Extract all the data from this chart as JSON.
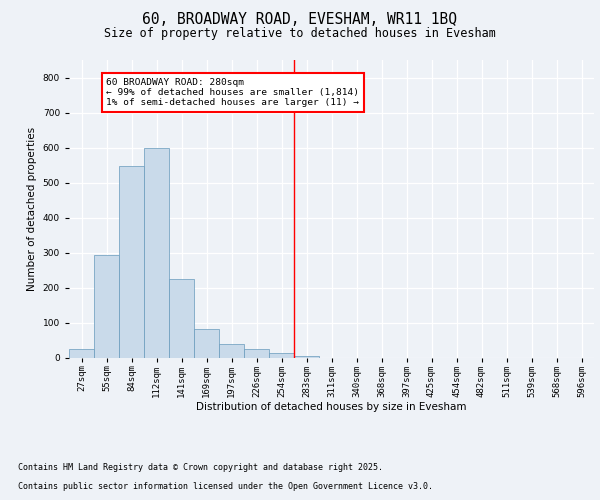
{
  "title": "60, BROADWAY ROAD, EVESHAM, WR11 1BQ",
  "subtitle": "Size of property relative to detached houses in Evesham",
  "xlabel": "Distribution of detached houses by size in Evesham",
  "ylabel": "Number of detached properties",
  "categories": [
    "27sqm",
    "55sqm",
    "84sqm",
    "112sqm",
    "141sqm",
    "169sqm",
    "197sqm",
    "226sqm",
    "254sqm",
    "283sqm",
    "311sqm",
    "340sqm",
    "368sqm",
    "397sqm",
    "425sqm",
    "454sqm",
    "482sqm",
    "511sqm",
    "539sqm",
    "568sqm",
    "596sqm"
  ],
  "values": [
    25,
    293,
    548,
    600,
    224,
    82,
    40,
    25,
    12,
    5,
    0,
    0,
    0,
    0,
    0,
    0,
    0,
    0,
    0,
    0,
    0
  ],
  "bar_color": "#c9daea",
  "bar_edge_color": "#6699bb",
  "background_color": "#eef2f7",
  "grid_color": "#ffffff",
  "ylim": [
    0,
    850
  ],
  "yticks": [
    0,
    100,
    200,
    300,
    400,
    500,
    600,
    700,
    800
  ],
  "red_line_x": 9,
  "annotation_text_line1": "60 BROADWAY ROAD: 280sqm",
  "annotation_text_line2": "← 99% of detached houses are smaller (1,814)",
  "annotation_text_line3": "1% of semi-detached houses are larger (11) →",
  "footer_line1": "Contains HM Land Registry data © Crown copyright and database right 2025.",
  "footer_line2": "Contains public sector information licensed under the Open Government Licence v3.0.",
  "title_fontsize": 10.5,
  "subtitle_fontsize": 8.5,
  "axis_label_fontsize": 7.5,
  "tick_fontsize": 6.5,
  "annotation_fontsize": 6.8,
  "footer_fontsize": 6.0
}
